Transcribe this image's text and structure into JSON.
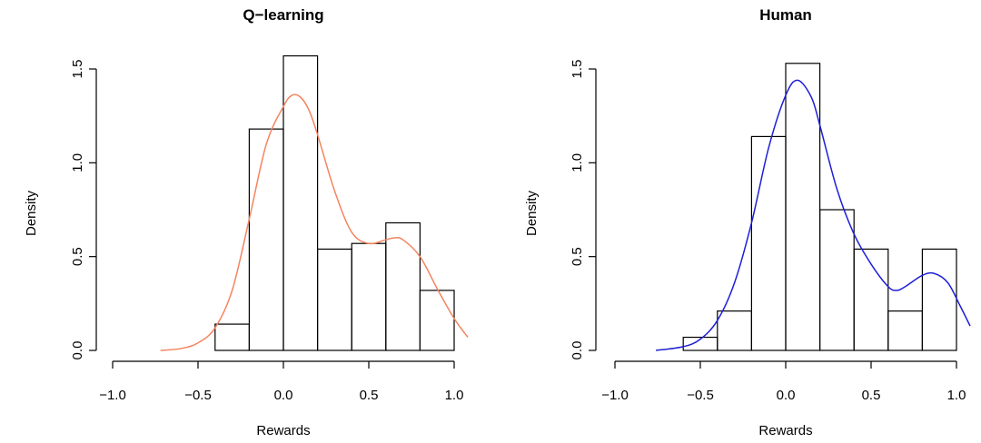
{
  "chart_data": [
    {
      "type": "histogram",
      "title": "Q−learning",
      "xlabel": "Rewards",
      "ylabel": "Density",
      "xlim": [
        -1.0,
        1.0
      ],
      "ylim": [
        0,
        1.5
      ],
      "x_ticks": [
        "−1.0",
        "−0.5",
        "0.0",
        "0.5",
        "1.0"
      ],
      "y_ticks": [
        "0.0",
        "0.5",
        "1.0",
        "1.5"
      ],
      "bins": [
        {
          "from": -0.4,
          "to": -0.2,
          "density": 0.14
        },
        {
          "from": -0.2,
          "to": 0.0,
          "density": 1.18
        },
        {
          "from": 0.0,
          "to": 0.2,
          "density": 1.57
        },
        {
          "from": 0.2,
          "to": 0.4,
          "density": 0.54
        },
        {
          "from": 0.4,
          "to": 0.6,
          "density": 0.57
        },
        {
          "from": 0.6,
          "to": 0.8,
          "density": 0.68
        },
        {
          "from": 0.8,
          "to": 1.0,
          "density": 0.32
        }
      ],
      "density_curve": {
        "color": "#f4845f",
        "x": [
          -0.72,
          -0.6,
          -0.5,
          -0.4,
          -0.3,
          -0.2,
          -0.1,
          0.0,
          0.05,
          0.1,
          0.15,
          0.2,
          0.3,
          0.4,
          0.5,
          0.6,
          0.65,
          0.7,
          0.8,
          0.9,
          1.0,
          1.08
        ],
        "y": [
          0.0,
          0.01,
          0.04,
          0.12,
          0.32,
          0.7,
          1.1,
          1.3,
          1.36,
          1.35,
          1.28,
          1.15,
          0.85,
          0.63,
          0.57,
          0.59,
          0.6,
          0.59,
          0.5,
          0.33,
          0.17,
          0.07
        ]
      }
    },
    {
      "type": "histogram",
      "title": "Human",
      "xlabel": "Rewards",
      "ylabel": "Density",
      "xlim": [
        -1.0,
        1.0
      ],
      "ylim": [
        0,
        1.5
      ],
      "x_ticks": [
        "−1.0",
        "−0.5",
        "0.0",
        "0.5",
        "1.0"
      ],
      "y_ticks": [
        "0.0",
        "0.5",
        "1.0",
        "1.5"
      ],
      "bins": [
        {
          "from": -0.6,
          "to": -0.4,
          "density": 0.07
        },
        {
          "from": -0.4,
          "to": -0.2,
          "density": 0.21
        },
        {
          "from": -0.2,
          "to": 0.0,
          "density": 1.14
        },
        {
          "from": 0.0,
          "to": 0.2,
          "density": 1.53
        },
        {
          "from": 0.2,
          "to": 0.4,
          "density": 0.75
        },
        {
          "from": 0.4,
          "to": 0.6,
          "density": 0.54
        },
        {
          "from": 0.6,
          "to": 0.8,
          "density": 0.21
        },
        {
          "from": 0.8,
          "to": 1.0,
          "density": 0.54
        }
      ],
      "density_curve": {
        "color": "#1f1fd6",
        "x": [
          -0.76,
          -0.6,
          -0.5,
          -0.4,
          -0.3,
          -0.2,
          -0.1,
          0.0,
          0.07,
          0.15,
          0.2,
          0.3,
          0.4,
          0.5,
          0.6,
          0.65,
          0.7,
          0.8,
          0.87,
          0.95,
          1.02,
          1.08
        ],
        "y": [
          0.0,
          0.02,
          0.06,
          0.16,
          0.36,
          0.68,
          1.08,
          1.36,
          1.44,
          1.35,
          1.2,
          0.86,
          0.62,
          0.46,
          0.34,
          0.32,
          0.34,
          0.4,
          0.41,
          0.36,
          0.24,
          0.13
        ]
      }
    }
  ]
}
